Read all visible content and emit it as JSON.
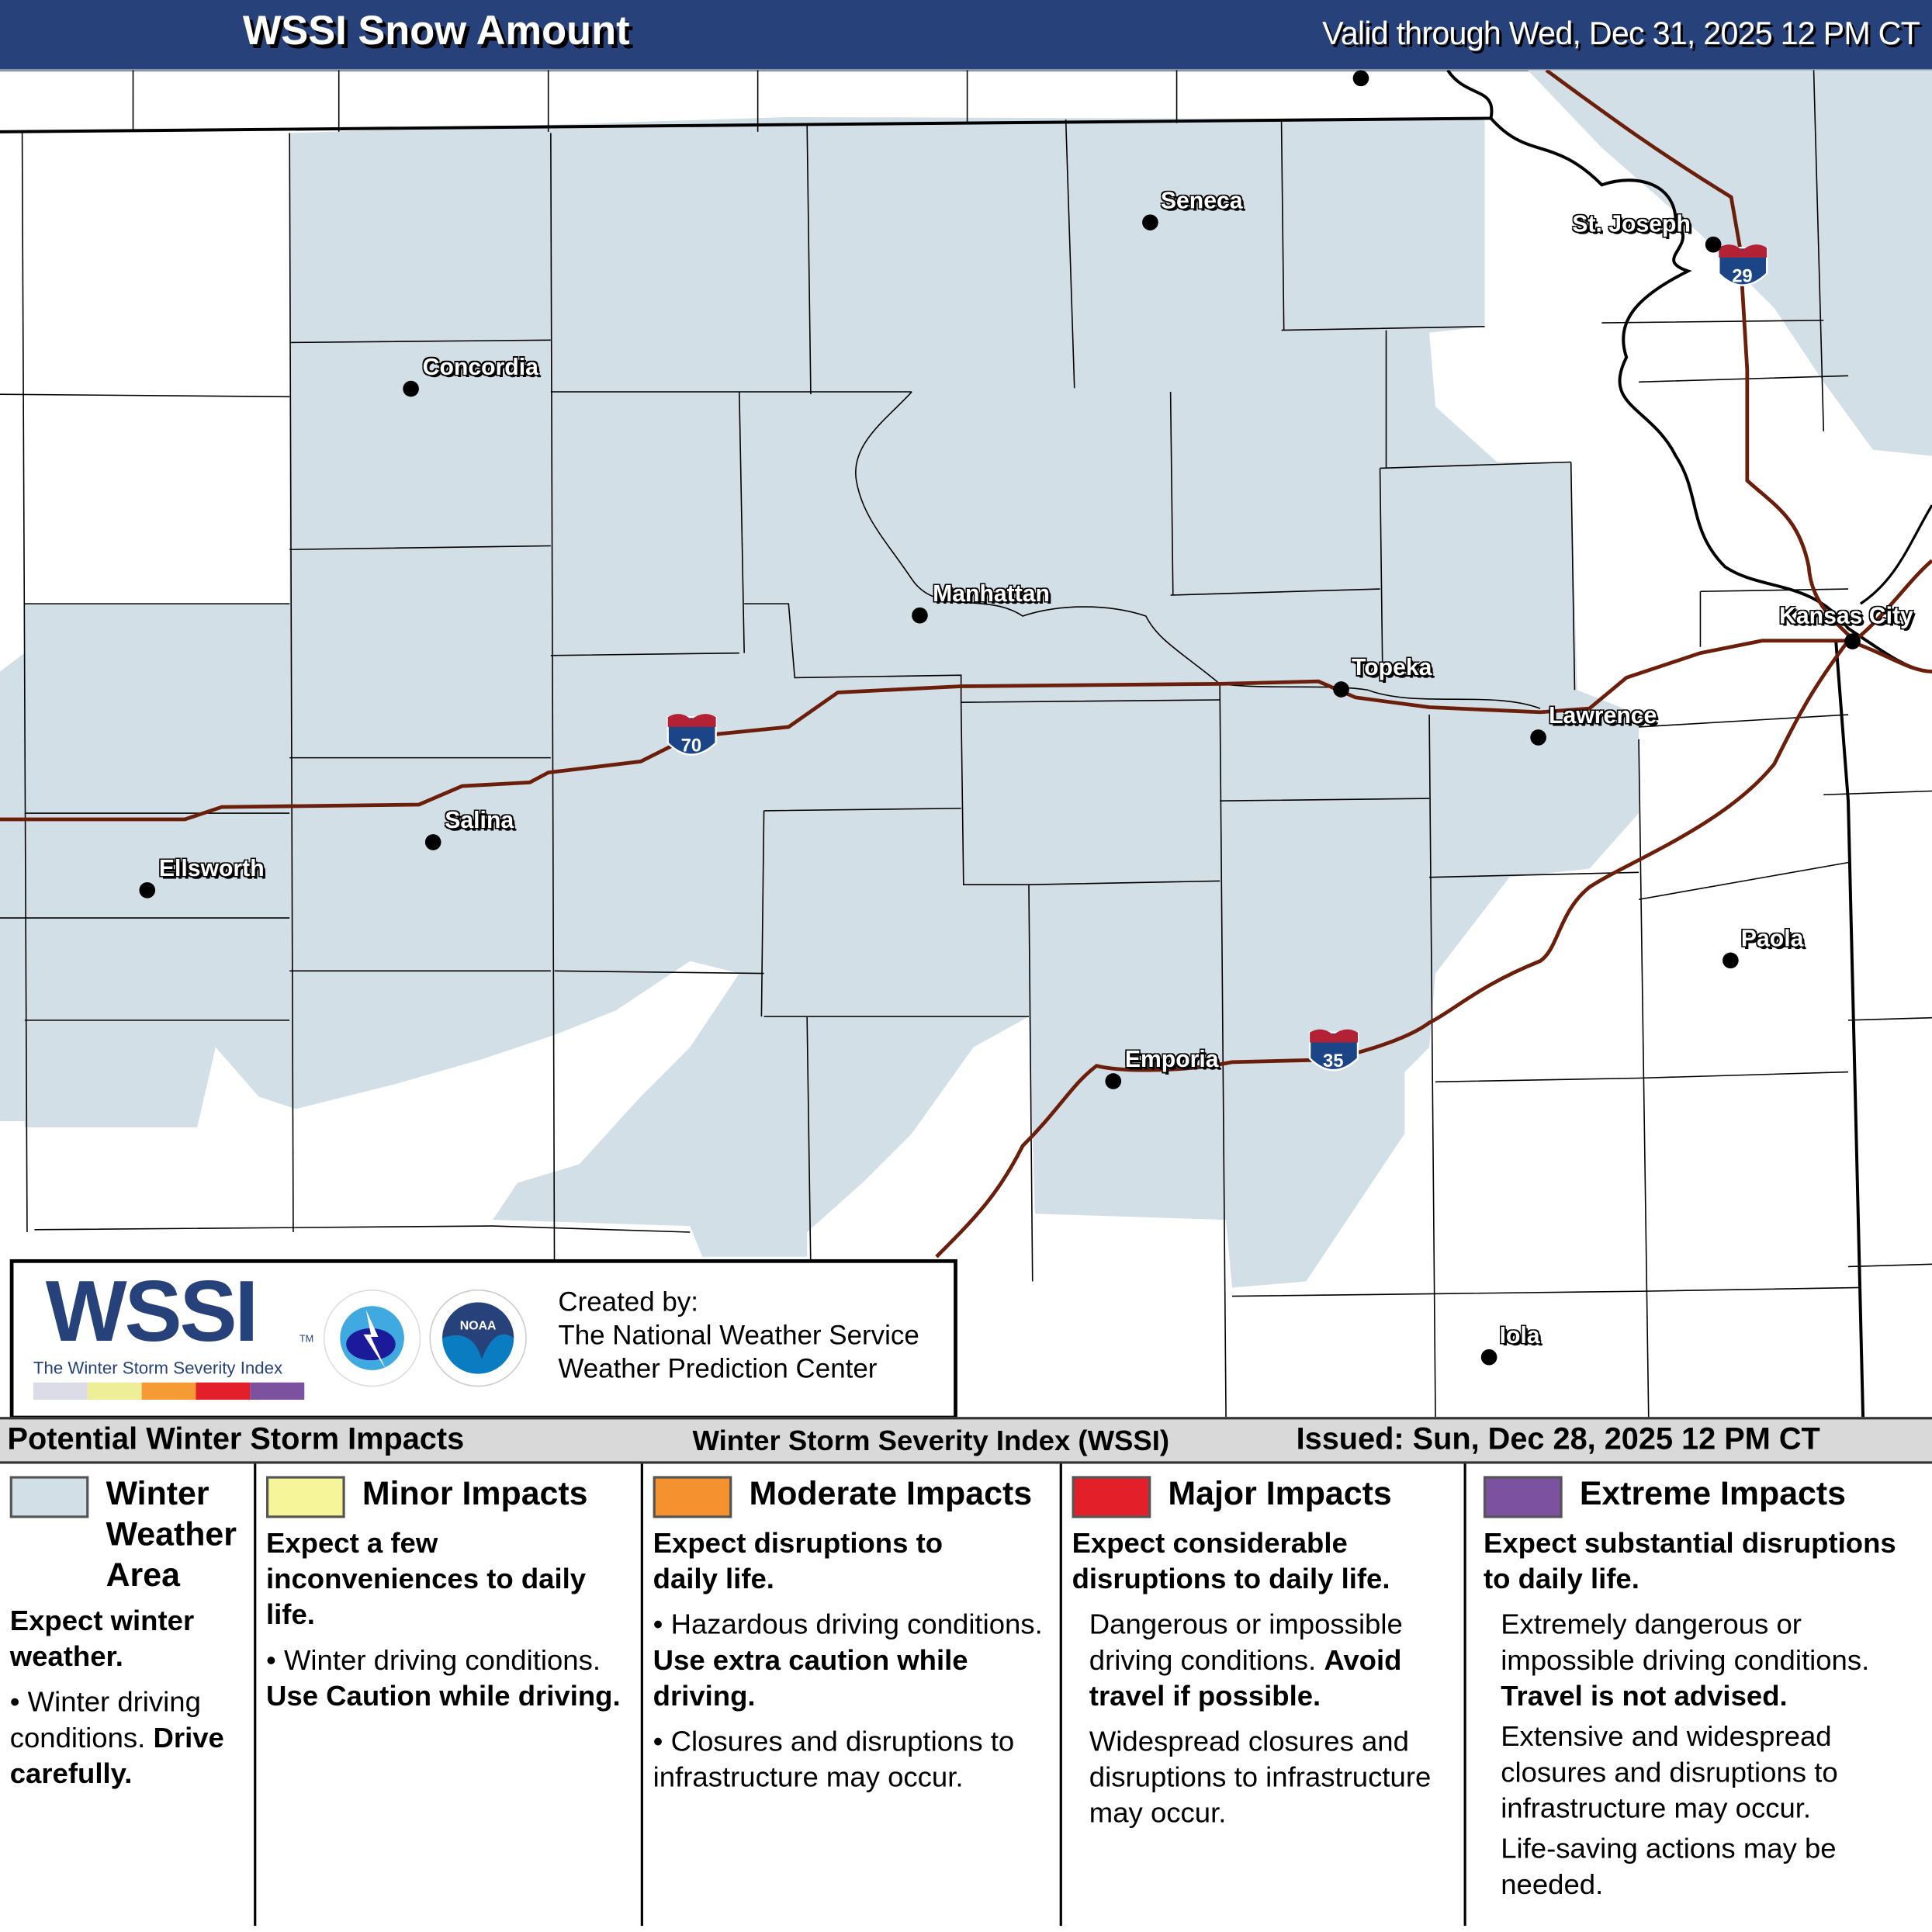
{
  "header": {
    "title": "WSSI Snow Amount",
    "valid": "Valid through Wed, Dec 31, 2025 12 PM CT"
  },
  "map": {
    "snow_color": "#d3dfe7",
    "interstate_color": "#6b1e0a",
    "cities": [
      "Seneca",
      "St. Joseph",
      "Concordia",
      "Manhattan",
      "Kansas City",
      "Topeka",
      "Lawrence",
      "Salina",
      "Ellsworth",
      "Paola",
      "Emporia",
      "Iola"
    ],
    "interstates": [
      "70",
      "29",
      "35"
    ]
  },
  "credit": {
    "logo": "WSSI",
    "tm": "TM",
    "logo_sub": "The Winter Storm Severity Index",
    "created": "Created by:",
    "org1": "The National Weather Service",
    "org2": "Weather Prediction Center",
    "nws_logo": "NATIONAL WEATHER SERVICE",
    "noaa_logo": "NOAA"
  },
  "legend": {
    "title": "Potential Winter Storm Impacts",
    "center": "Winter Storm Severity Index (WSSI)",
    "issued": "Issued: Sun, Dec 28, 2025 12 PM CT",
    "categories": [
      {
        "label": "Winter Weather Area",
        "color": "#d3dfe7",
        "head": "Expect winter weather.",
        "b1": "Winter driving conditions.",
        "b1b": "Drive carefully."
      },
      {
        "label": "Minor Impacts",
        "color": "#f7f59a",
        "head": "Expect a few inconveniences to daily life.",
        "b1": "Winter driving conditions.",
        "b1b": "Use Caution while driving."
      },
      {
        "label": "Moderate Impacts",
        "color": "#f5922f",
        "head": "Expect disruptions to daily life.",
        "b1": "Hazardous driving conditions.",
        "b1b": "Use extra caution while driving.",
        "b2": "Closures and disruptions to infrastructure may occur."
      },
      {
        "label": "Major Impacts",
        "color": "#e3202a",
        "head": "Expect considerable disruptions to daily life.",
        "b1": "Dangerous or impossible driving conditions.",
        "b1b": "Avoid travel if possible.",
        "b2": "Widespread closures and disruptions to infrastructure may occur."
      },
      {
        "label": "Extreme Impacts",
        "color": "#7b51a0",
        "head": "Expect substantial disruptions to daily life.",
        "b1": "Extremely dangerous or impossible driving conditions.",
        "b1b": "Travel is not advised.",
        "b2": "Extensive and widespread closures and disruptions to infrastructure may occur.",
        "b3": "Life-saving actions may be needed."
      }
    ]
  }
}
